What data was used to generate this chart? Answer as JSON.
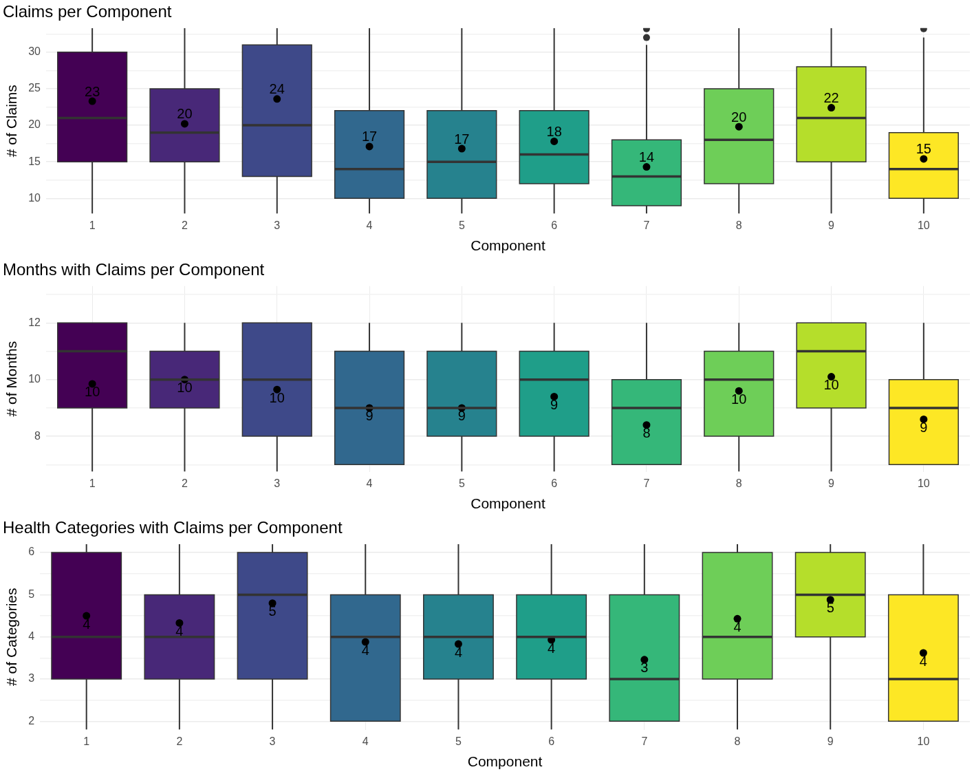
{
  "chart_data": [
    {
      "type": "box",
      "title": "Claims per Component",
      "xlabel": "Component",
      "ylabel": "# of Claims",
      "categories": [
        "1",
        "2",
        "3",
        "4",
        "5",
        "6",
        "7",
        "8",
        "9",
        "10"
      ],
      "colors": [
        "#440154",
        "#482878",
        "#3e4989",
        "#31688e",
        "#26828e",
        "#1f9e89",
        "#35b779",
        "#6ece58",
        "#b5de2b",
        "#fde725"
      ],
      "boxes": [
        {
          "low": 7.9,
          "q1": 15,
          "median": 21,
          "q3": 30,
          "high": 33.3
        },
        {
          "low": 7.9,
          "q1": 15,
          "median": 19,
          "q3": 25,
          "high": 33.3
        },
        {
          "low": 7.9,
          "q1": 13,
          "median": 20,
          "q3": 31,
          "high": 33.3
        },
        {
          "low": 7.9,
          "q1": 10,
          "median": 14,
          "q3": 22,
          "high": 33.3
        },
        {
          "low": 7.9,
          "q1": 10,
          "median": 15,
          "q3": 22,
          "high": 33.3
        },
        {
          "low": 7.9,
          "q1": 12,
          "median": 16,
          "q3": 22,
          "high": 33.3
        },
        {
          "low": 7.9,
          "q1": 9,
          "median": 13,
          "q3": 18,
          "high": 31,
          "outliers": [
            32,
            33.2
          ]
        },
        {
          "low": 7.9,
          "q1": 12,
          "median": 18,
          "q3": 25,
          "high": 33.3
        },
        {
          "low": 7.9,
          "q1": 15,
          "median": 21,
          "q3": 28,
          "high": 33.3
        },
        {
          "low": 7.9,
          "q1": 10,
          "median": 14,
          "q3": 19,
          "high": 32,
          "outliers": [
            33.2
          ]
        }
      ],
      "series": [
        {
          "type": "scatter",
          "color": "#000000",
          "x": [
            "1",
            "2",
            "3",
            "4",
            "5",
            "6",
            "7",
            "8",
            "9",
            "10"
          ],
          "values": [
            23.3,
            20.2,
            23.6,
            17.1,
            16.8,
            17.8,
            14.3,
            19.8,
            22.4,
            15.4
          ],
          "value_labels": [
            "23",
            "20",
            "24",
            "17",
            "17",
            "18",
            "14",
            "20",
            "22",
            "15"
          ]
        }
      ],
      "ylim": [
        7.9,
        33.3
      ],
      "yticks": [
        10,
        {
          "value": 12.5,
          "label": null
        },
        15,
        {
          "value": 17.5,
          "label": null
        },
        20,
        {
          "value": 22.5,
          "label": null
        },
        25,
        {
          "value": 27.5,
          "label": null
        },
        30,
        {
          "value": 32.5,
          "label": null
        }
      ],
      "grid": true,
      "legend": false
    },
    {
      "type": "box",
      "title": "Months with Claims per Component",
      "xlabel": "Component",
      "ylabel": "# of Months",
      "categories": [
        "1",
        "2",
        "3",
        "4",
        "5",
        "6",
        "7",
        "8",
        "9",
        "10"
      ],
      "colors": [
        "#440154",
        "#482878",
        "#3e4989",
        "#31688e",
        "#26828e",
        "#1f9e89",
        "#35b779",
        "#6ece58",
        "#b5de2b",
        "#fde725"
      ],
      "boxes": [
        {
          "low": 6.75,
          "q1": 9,
          "median": 11,
          "q3": 12,
          "high": 12
        },
        {
          "low": 6.75,
          "q1": 9,
          "median": 10,
          "q3": 11,
          "high": 12
        },
        {
          "low": 6.75,
          "q1": 8,
          "median": 10,
          "q3": 12,
          "high": 12
        },
        {
          "low": 7,
          "q1": 7,
          "median": 9,
          "q3": 11,
          "high": 12
        },
        {
          "low": 6.75,
          "q1": 8,
          "median": 9,
          "q3": 11,
          "high": 12
        },
        {
          "low": 6.75,
          "q1": 8,
          "median": 10,
          "q3": 11,
          "high": 12
        },
        {
          "low": 7,
          "q1": 7,
          "median": 9,
          "q3": 10,
          "high": 12
        },
        {
          "low": 6.75,
          "q1": 8,
          "median": 10,
          "q3": 11,
          "high": 12
        },
        {
          "low": 6.75,
          "q1": 9,
          "median": 11,
          "q3": 12,
          "high": 12
        },
        {
          "low": 7,
          "q1": 7,
          "median": 9,
          "q3": 10,
          "high": 12
        }
      ],
      "series": [
        {
          "type": "scatter",
          "color": "#000000",
          "x": [
            "1",
            "2",
            "3",
            "4",
            "5",
            "6",
            "7",
            "8",
            "9",
            "10"
          ],
          "values": [
            9.85,
            10.0,
            9.65,
            9.0,
            9.0,
            9.4,
            8.4,
            9.6,
            10.1,
            8.6
          ],
          "value_labels": [
            "10",
            "10",
            "10",
            "9",
            "9",
            "9",
            "8",
            "10",
            "10",
            "9"
          ]
        }
      ],
      "ylim": [
        6.75,
        13.3
      ],
      "yticks": [
        {
          "value": 7,
          "label": null
        },
        8,
        {
          "value": 9,
          "label": null
        },
        10,
        {
          "value": 11,
          "label": null
        },
        12,
        {
          "value": 13,
          "label": null
        }
      ],
      "grid": true,
      "legend": false
    },
    {
      "type": "box",
      "title": "Health Categories with Claims per Component",
      "xlabel": "Component",
      "ylabel": "# of Categories",
      "categories": [
        "1",
        "2",
        "3",
        "4",
        "5",
        "6",
        "7",
        "8",
        "9",
        "10"
      ],
      "colors": [
        "#440154",
        "#482878",
        "#3e4989",
        "#31688e",
        "#26828e",
        "#1f9e89",
        "#35b779",
        "#6ece58",
        "#b5de2b",
        "#fde725"
      ],
      "boxes": [
        {
          "low": 1.8,
          "q1": 3,
          "median": 4,
          "q3": 6,
          "high": 6.2
        },
        {
          "low": 1.8,
          "q1": 3,
          "median": 4,
          "q3": 5,
          "high": 6.2
        },
        {
          "low": 1.8,
          "q1": 3,
          "median": 5,
          "q3": 6,
          "high": 6.2
        },
        {
          "low": 2,
          "q1": 2,
          "median": 4,
          "q3": 5,
          "high": 6.2
        },
        {
          "low": 1.8,
          "q1": 3,
          "median": 4,
          "q3": 5,
          "high": 6.2
        },
        {
          "low": 1.8,
          "q1": 3,
          "median": 4,
          "q3": 5,
          "high": 6.2
        },
        {
          "low": 2,
          "q1": 2,
          "median": 3,
          "q3": 5,
          "high": 6.2
        },
        {
          "low": 1.8,
          "q1": 3,
          "median": 4,
          "q3": 6,
          "high": 6.2
        },
        {
          "low": 1.8,
          "q1": 4,
          "median": 5,
          "q3": 6,
          "high": 6.2
        },
        {
          "low": 2,
          "q1": 2,
          "median": 3,
          "q3": 5,
          "high": 6.2
        }
      ],
      "series": [
        {
          "type": "scatter",
          "color": "#000000",
          "x": [
            "1",
            "2",
            "3",
            "4",
            "5",
            "6",
            "7",
            "8",
            "9",
            "10"
          ],
          "values": [
            4.5,
            4.33,
            4.8,
            3.88,
            3.83,
            3.93,
            3.46,
            4.43,
            4.88,
            3.62
          ],
          "value_labels": [
            "4",
            "4",
            "5",
            "4",
            "4",
            "4",
            "3",
            "4",
            "5",
            "4"
          ]
        }
      ],
      "ylim": [
        1.8,
        6.2
      ],
      "yticks": [
        2,
        {
          "value": 2.5,
          "label": null
        },
        3,
        {
          "value": 3.5,
          "label": null
        },
        4,
        {
          "value": 4.5,
          "label": null
        },
        5,
        {
          "value": 5.5,
          "label": null
        },
        6
      ],
      "grid": true,
      "legend": false
    }
  ]
}
